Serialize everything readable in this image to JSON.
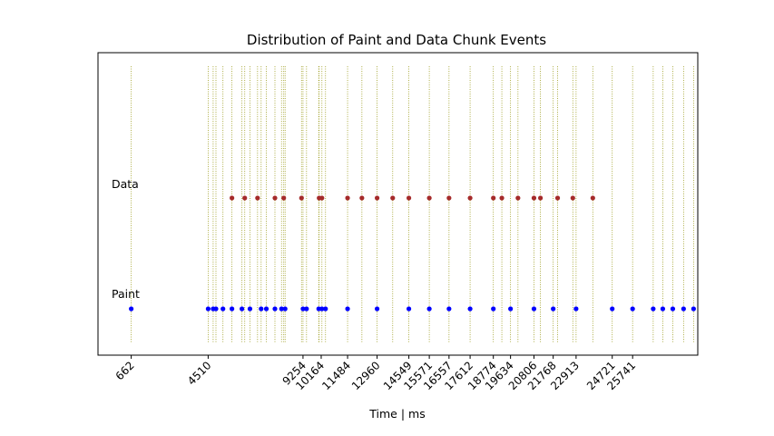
{
  "chart_data": {
    "type": "scatter",
    "title": "Distribution of Paint and Data Chunk Events",
    "xlabel": "Time | ms",
    "ylabel": "",
    "xlim": [
      -1000,
      29000
    ],
    "grid": false,
    "legend": "none",
    "xticks": [
      662,
      4510,
      9254,
      10164,
      11484,
      12960,
      14549,
      15571,
      16557,
      17612,
      18774,
      19634,
      20806,
      21768,
      22913,
      24721,
      25741
    ],
    "series": [
      {
        "name": "Data",
        "color": "#a52a2a",
        "x": [
          5700,
          6340,
          6980,
          7850,
          8290,
          9180,
          10060,
          10200,
          11484,
          12200,
          12960,
          13740,
          14549,
          15571,
          16557,
          17612,
          18774,
          19200,
          20006,
          20806,
          21130,
          21990,
          22750,
          23750
        ]
      },
      {
        "name": "Paint",
        "color": "#0000ff",
        "x": [
          662,
          4510,
          4760,
          4900,
          5250,
          5700,
          6200,
          6600,
          7160,
          7420,
          7850,
          8180,
          8360,
          9254,
          9430,
          10040,
          10200,
          10380,
          11484,
          12960,
          14549,
          15571,
          16557,
          17612,
          18774,
          19634,
          20806,
          21768,
          22913,
          24721,
          25741,
          26770,
          27250,
          27750,
          28290,
          28790
        ]
      }
    ],
    "vlines_color": "#9a9a1a",
    "row_labels": [
      "Data",
      "Paint"
    ]
  }
}
